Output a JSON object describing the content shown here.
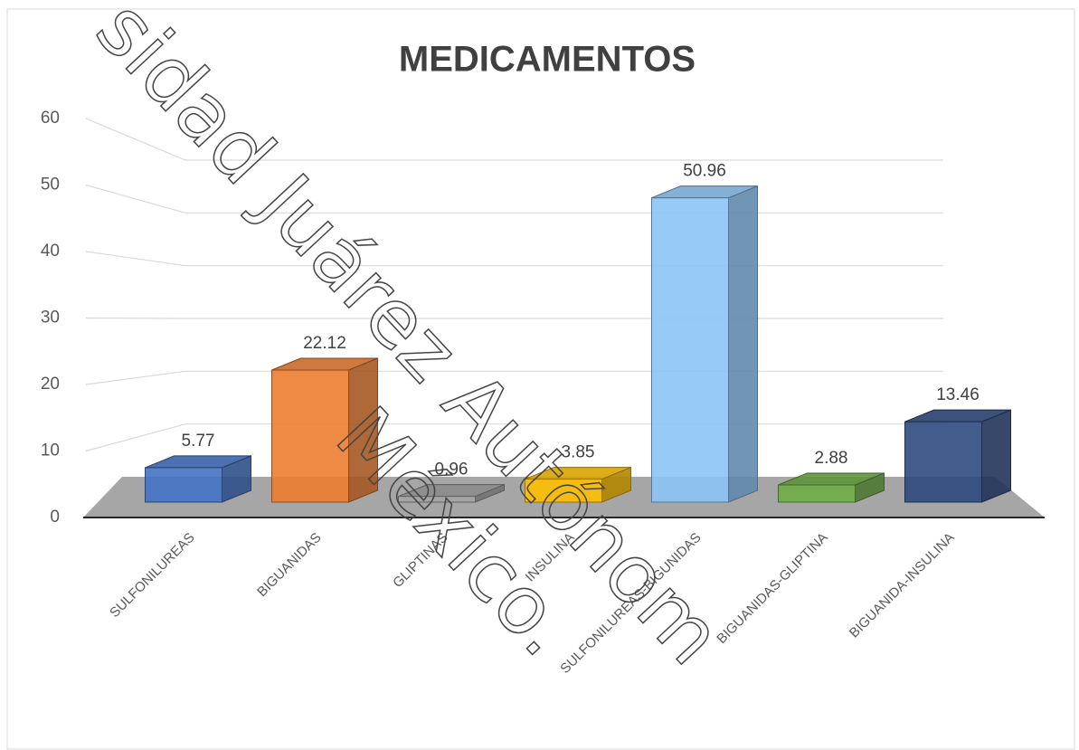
{
  "chart_data": {
    "type": "bar3d",
    "title": "MEDICAMENTOS",
    "categories": [
      "SULFONILUREAS",
      "BIGUANIDAS",
      "GLIPTINAS",
      "INSULINA",
      "SULFONILUREAS-BIGUNIDAS",
      "BIGUANIDAS-GLIPTINA",
      "BIGUANIDA-INSULINA"
    ],
    "values": [
      5.77,
      22.12,
      0.96,
      3.85,
      50.96,
      2.88,
      13.46
    ],
    "colors": [
      "#4472c4",
      "#ed7d31",
      "#a5a5a5",
      "#ffc000",
      "#8cc4f5",
      "#70ad47",
      "#2f4a80"
    ],
    "ylim": [
      0,
      60
    ],
    "yticks": [
      0,
      10,
      20,
      30,
      40,
      50,
      60
    ],
    "grid": true,
    "watermark": [
      "sidad Juárez Autónom",
      "México."
    ]
  }
}
